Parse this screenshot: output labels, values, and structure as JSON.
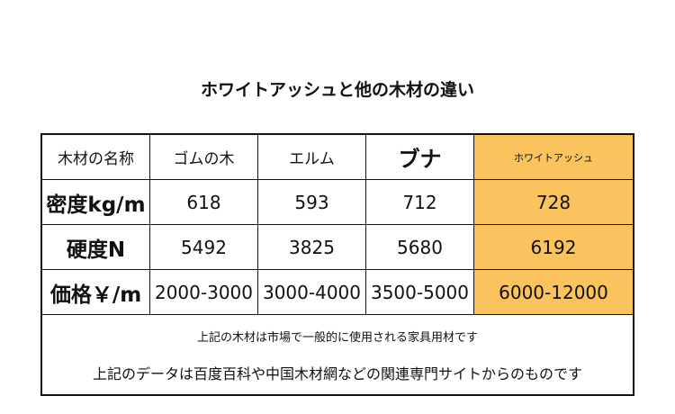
{
  "title": "ホワイトアッシュと他の木材の違い",
  "table": {
    "headers": [
      "木材の名称",
      "ゴムの木",
      "エルム",
      "ブナ",
      "ホワイトアッシュ"
    ],
    "rows": [
      {
        "label": "密度kg/m",
        "values": [
          "618",
          "593",
          "712",
          "728"
        ]
      },
      {
        "label": "硬度N",
        "values": [
          "5492",
          "3825",
          "5680",
          "6192"
        ]
      },
      {
        "label": "価格￥/m",
        "values": [
          "2000-3000",
          "3000-4000",
          "3500-5000",
          "6000-12000"
        ]
      }
    ],
    "highlight_color": "#fac35e"
  },
  "notes": [
    "上記の木材は市場で一般的に使用される家具用材です",
    "上記のデータは百度百科や中国木材網などの関連専門サイトからのものです"
  ]
}
